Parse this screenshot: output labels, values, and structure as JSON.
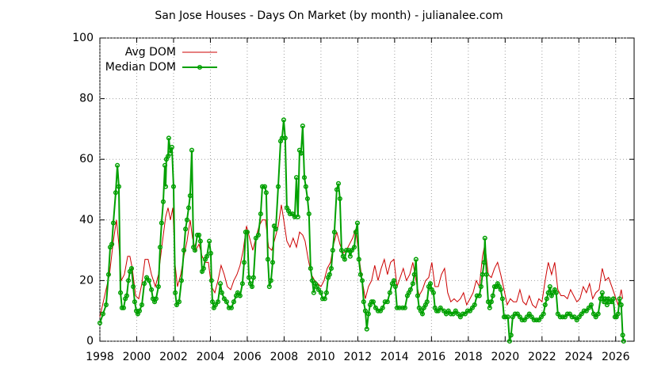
{
  "chart_data": {
    "type": "line",
    "title": "San Jose Houses - Days On Market (by month) - julianalee.com",
    "xlim": [
      1998,
      2027
    ],
    "ylim": [
      0,
      100
    ],
    "xticks": [
      1998,
      2000,
      2002,
      2004,
      2006,
      2008,
      2010,
      2012,
      2014,
      2016,
      2018,
      2020,
      2022,
      2024,
      2026
    ],
    "yticks": [
      0,
      20,
      40,
      60,
      80,
      100
    ],
    "grid": true,
    "legend": "top-left",
    "series": [
      {
        "name": "Avg DOM",
        "color": "#cc0000",
        "markers": false,
        "x": [
          1998.0,
          1998.26,
          1998.52,
          1998.73,
          1998.9,
          1999.03,
          1999.16,
          1999.33,
          1999.51,
          1999.63,
          1999.76,
          1999.94,
          2000.11,
          2000.28,
          2000.45,
          2000.62,
          2000.8,
          2001.01,
          2001.18,
          2001.4,
          2001.57,
          2001.7,
          2001.83,
          2001.96,
          2002.09,
          2002.21,
          2002.39,
          2002.56,
          2002.73,
          2002.9,
          2003.03,
          2003.2,
          2003.38,
          2003.55,
          2003.72,
          2003.89,
          2004.06,
          2004.24,
          2004.41,
          2004.58,
          2004.75,
          2004.92,
          2005.1,
          2005.27,
          2005.44,
          2005.61,
          2005.78,
          2005.96,
          2006.13,
          2006.3,
          2006.47,
          2006.64,
          2006.82,
          2006.99,
          2007.16,
          2007.33,
          2007.51,
          2007.68,
          2007.85,
          2007.98,
          2008.15,
          2008.32,
          2008.49,
          2008.67,
          2008.84,
          2009.01,
          2009.14,
          2009.31,
          2009.48,
          2009.66,
          2009.83,
          2010.0,
          2010.17,
          2010.34,
          2010.52,
          2010.69,
          2010.86,
          2011.03,
          2011.2,
          2011.38,
          2011.55,
          2011.72,
          2011.89,
          2012.06,
          2012.24,
          2012.41,
          2012.58,
          2012.75,
          2012.92,
          2013.1,
          2013.27,
          2013.44,
          2013.61,
          2013.78,
          2013.96,
          2014.13,
          2014.3,
          2014.47,
          2014.64,
          2014.82,
          2014.99,
          2015.16,
          2015.33,
          2015.51,
          2015.68,
          2015.85,
          2016.02,
          2016.19,
          2016.37,
          2016.54,
          2016.71,
          2016.88,
          2017.05,
          2017.23,
          2017.4,
          2017.57,
          2017.74,
          2017.91,
          2018.09,
          2018.26,
          2018.43,
          2018.6,
          2018.77,
          2018.9,
          2019.08,
          2019.25,
          2019.42,
          2019.59,
          2019.76,
          2019.94,
          2020.11,
          2020.28,
          2020.45,
          2020.62,
          2020.8,
          2020.97,
          2021.14,
          2021.31,
          2021.48,
          2021.66,
          2021.83,
          2022.0,
          2022.17,
          2022.34,
          2022.52,
          2022.69,
          2022.86,
          2023.03,
          2023.2,
          2023.38,
          2023.55,
          2023.72,
          2023.89,
          2024.06,
          2024.24,
          2024.41,
          2024.58,
          2024.75,
          2024.92,
          2025.1,
          2025.27,
          2025.44,
          2025.61,
          2025.79,
          2025.96,
          2026.13,
          2026.3,
          2026.38
        ],
        "values": [
          8,
          15,
          22,
          33,
          40,
          32,
          20,
          22,
          28,
          28,
          24,
          15,
          14,
          19,
          27,
          27,
          22,
          18,
          22,
          33,
          41,
          44,
          40,
          44,
          25,
          18,
          22,
          28,
          33,
          40,
          34,
          30,
          32,
          28,
          26,
          26,
          18,
          16,
          20,
          25,
          22,
          18,
          17,
          20,
          22,
          25,
          30,
          38,
          34,
          30,
          34,
          38,
          40,
          40,
          31,
          30,
          34,
          38,
          45,
          40,
          33,
          31,
          34,
          31,
          36,
          35,
          33,
          27,
          22,
          20,
          19,
          18,
          20,
          24,
          26,
          32,
          36,
          32,
          29,
          30,
          32,
          34,
          37,
          28,
          20,
          14,
          18,
          20,
          25,
          20,
          24,
          27,
          22,
          26,
          27,
          18,
          21,
          24,
          20,
          22,
          26,
          20,
          15,
          17,
          20,
          21,
          26,
          18,
          18,
          22,
          24,
          16,
          13,
          14,
          13,
          14,
          16,
          12,
          14,
          16,
          20,
          18,
          28,
          32,
          22,
          21,
          24,
          26,
          22,
          17,
          12,
          14,
          13,
          13,
          17,
          13,
          12,
          15,
          12,
          11,
          14,
          13,
          20,
          26,
          22,
          26,
          17,
          15,
          15,
          14,
          17,
          15,
          13,
          14,
          18,
          16,
          19,
          14,
          16,
          17,
          24,
          20,
          21,
          18,
          15,
          12,
          17,
          14
        ]
      },
      {
        "name": "Median DOM",
        "color": "#00a000",
        "markers": true,
        "x": [
          1998.0,
          1998.17,
          1998.34,
          1998.47,
          1998.56,
          1998.65,
          1998.73,
          1998.86,
          1998.95,
          1999.03,
          1999.12,
          1999.2,
          1999.29,
          1999.38,
          1999.46,
          1999.55,
          1999.63,
          1999.72,
          1999.81,
          1999.89,
          1999.98,
          2000.06,
          2000.15,
          2000.28,
          2000.41,
          2000.54,
          2000.67,
          2000.8,
          2000.88,
          2000.97,
          2001.05,
          2001.18,
          2001.27,
          2001.35,
          2001.44,
          2001.53,
          2001.57,
          2001.61,
          2001.7,
          2001.74,
          2001.83,
          2001.91,
          2002.0,
          2002.09,
          2002.17,
          2002.3,
          2002.43,
          2002.56,
          2002.65,
          2002.73,
          2002.82,
          2002.9,
          2002.99,
          2003.08,
          2003.16,
          2003.29,
          2003.38,
          2003.46,
          2003.55,
          2003.63,
          2003.72,
          2003.81,
          2003.94,
          2004.02,
          2004.06,
          2004.11,
          2004.19,
          2004.28,
          2004.41,
          2004.54,
          2004.62,
          2004.75,
          2004.88,
          2005.01,
          2005.14,
          2005.27,
          2005.4,
          2005.48,
          2005.61,
          2005.74,
          2005.83,
          2005.91,
          2006.0,
          2006.09,
          2006.17,
          2006.26,
          2006.34,
          2006.47,
          2006.6,
          2006.73,
          2006.82,
          2006.95,
          2007.03,
          2007.12,
          2007.2,
          2007.29,
          2007.38,
          2007.46,
          2007.55,
          2007.68,
          2007.81,
          2007.89,
          2007.98,
          2008.06,
          2008.15,
          2008.24,
          2008.32,
          2008.45,
          2008.58,
          2008.67,
          2008.75,
          2008.84,
          2008.92,
          2009.01,
          2009.1,
          2009.18,
          2009.27,
          2009.35,
          2009.44,
          2009.53,
          2009.61,
          2009.7,
          2009.78,
          2009.87,
          2010.0,
          2010.09,
          2010.21,
          2010.3,
          2010.39,
          2010.47,
          2010.56,
          2010.64,
          2010.73,
          2010.86,
          2010.95,
          2011.03,
          2011.12,
          2011.2,
          2011.29,
          2011.38,
          2011.51,
          2011.59,
          2011.68,
          2011.81,
          2011.89,
          2011.98,
          2012.06,
          2012.15,
          2012.24,
          2012.32,
          2012.41,
          2012.49,
          2012.58,
          2012.67,
          2012.75,
          2012.84,
          2012.97,
          2013.1,
          2013.23,
          2013.35,
          2013.48,
          2013.61,
          2013.74,
          2013.87,
          2013.96,
          2014.04,
          2014.13,
          2014.26,
          2014.43,
          2014.56,
          2014.69,
          2014.77,
          2014.86,
          2014.99,
          2015.07,
          2015.16,
          2015.25,
          2015.33,
          2015.42,
          2015.51,
          2015.59,
          2015.68,
          2015.76,
          2015.85,
          2015.94,
          2016.02,
          2016.11,
          2016.19,
          2016.28,
          2016.37,
          2016.49,
          2016.67,
          2016.8,
          2016.92,
          2017.05,
          2017.18,
          2017.31,
          2017.44,
          2017.57,
          2017.7,
          2017.83,
          2017.96,
          2018.09,
          2018.22,
          2018.34,
          2018.47,
          2018.6,
          2018.69,
          2018.77,
          2018.86,
          2018.9,
          2018.99,
          2019.08,
          2019.16,
          2019.25,
          2019.33,
          2019.42,
          2019.51,
          2019.59,
          2019.68,
          2019.76,
          2019.85,
          2019.94,
          2020.02,
          2020.15,
          2020.24,
          2020.32,
          2020.41,
          2020.54,
          2020.67,
          2020.8,
          2020.92,
          2021.05,
          2021.18,
          2021.31,
          2021.44,
          2021.57,
          2021.7,
          2021.83,
          2021.96,
          2022.08,
          2022.17,
          2022.26,
          2022.34,
          2022.43,
          2022.52,
          2022.6,
          2022.69,
          2022.77,
          2022.86,
          2022.99,
          2023.12,
          2023.25,
          2023.38,
          2023.51,
          2023.63,
          2023.76,
          2023.89,
          2024.02,
          2024.15,
          2024.28,
          2024.41,
          2024.54,
          2024.67,
          2024.8,
          2024.92,
          2025.05,
          2025.18,
          2025.27,
          2025.36,
          2025.44,
          2025.53,
          2025.61,
          2025.7,
          2025.79,
          2025.87,
          2025.96,
          2026.04,
          2026.13,
          2026.21,
          2026.3,
          2026.38,
          2026.43
        ],
        "values": [
          6,
          9,
          12,
          22,
          31,
          32,
          39,
          49,
          58,
          51,
          16,
          11,
          11,
          14,
          15,
          20,
          23,
          24,
          18,
          13,
          10,
          9,
          10,
          12,
          19,
          21,
          20,
          17,
          14,
          13,
          14,
          18,
          31,
          39,
          46,
          58,
          51,
          60,
          61,
          67,
          62,
          64,
          51,
          16,
          12,
          13,
          20,
          30,
          37,
          40,
          44,
          48,
          63,
          31,
          30,
          35,
          35,
          33,
          23,
          24,
          27,
          28,
          33,
          29,
          20,
          13,
          11,
          12,
          13,
          19,
          16,
          14,
          13,
          11,
          11,
          13,
          15,
          16,
          15,
          19,
          26,
          36,
          36,
          21,
          19,
          18,
          21,
          34,
          35,
          42,
          51,
          51,
          49,
          27,
          18,
          20,
          26,
          38,
          37,
          51,
          66,
          67,
          73,
          67,
          44,
          43,
          42,
          42,
          41,
          54,
          41,
          63,
          62,
          71,
          54,
          51,
          47,
          42,
          24,
          20,
          16,
          19,
          18,
          17,
          16,
          14,
          14,
          16,
          21,
          22,
          24,
          30,
          36,
          50,
          52,
          47,
          30,
          28,
          27,
          30,
          30,
          28,
          30,
          31,
          36,
          39,
          27,
          22,
          20,
          13,
          10,
          4,
          9,
          12,
          13,
          13,
          11,
          10,
          10,
          11,
          13,
          13,
          16,
          19,
          20,
          18,
          11,
          11,
          11,
          11,
          15,
          16,
          17,
          19,
          22,
          27,
          15,
          11,
          10,
          9,
          11,
          12,
          13,
          18,
          19,
          17,
          16,
          11,
          10,
          10,
          11,
          10,
          9,
          10,
          9,
          9,
          10,
          9,
          8,
          9,
          9,
          10,
          10,
          11,
          12,
          15,
          15,
          18,
          22,
          26,
          34,
          22,
          13,
          11,
          13,
          15,
          18,
          18,
          19,
          18,
          17,
          14,
          8,
          8,
          8,
          0,
          2,
          8,
          9,
          9,
          8,
          7,
          7,
          8,
          9,
          8,
          7,
          7,
          7,
          8,
          9,
          12,
          14,
          16,
          18,
          15,
          16,
          17,
          16,
          9,
          8,
          8,
          8,
          9,
          9,
          8,
          8,
          7,
          8,
          9,
          10,
          10,
          11,
          12,
          9,
          8,
          9,
          14,
          16,
          13,
          14,
          12,
          14,
          13,
          13,
          14,
          8,
          8,
          9,
          14,
          12,
          2,
          0
        ]
      }
    ]
  }
}
